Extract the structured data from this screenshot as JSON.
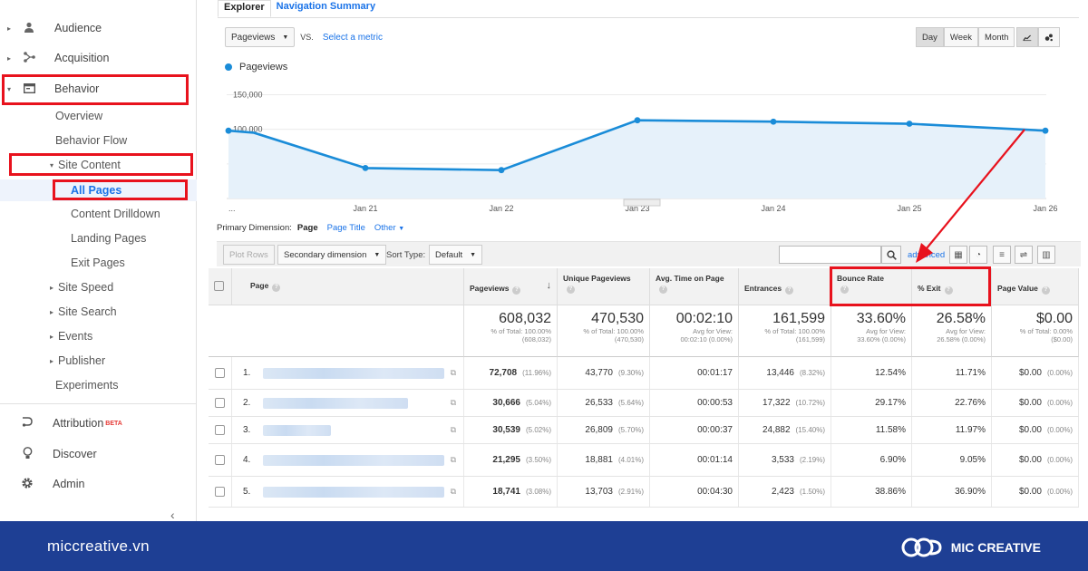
{
  "sidebar": {
    "items": [
      {
        "label": "Audience",
        "icon": "person-icon"
      },
      {
        "label": "Acquisition",
        "icon": "acquisition-icon"
      },
      {
        "label": "Behavior",
        "icon": "behavior-icon"
      }
    ],
    "behavior_sub": [
      "Overview",
      "Behavior Flow"
    ],
    "site_content": "Site Content",
    "site_content_sub": [
      "All Pages",
      "Content Drilldown",
      "Landing Pages",
      "Exit Pages"
    ],
    "behavior_more": [
      "Site Speed",
      "Site Search",
      "Events",
      "Publisher"
    ],
    "experiments": "Experiments",
    "bottom": [
      {
        "label": "Attribution",
        "icon": "attribution-icon",
        "badge": "BETA"
      },
      {
        "label": "Discover",
        "icon": "lightbulb-icon"
      },
      {
        "label": "Admin",
        "icon": "gear-icon"
      }
    ],
    "collapse": "‹"
  },
  "tabs": [
    "Explorer",
    "Navigation Summary"
  ],
  "metric": {
    "selected": "Pageviews",
    "vs": "VS.",
    "select_link": "Select a metric"
  },
  "range_buttons": [
    "Day",
    "Week",
    "Month"
  ],
  "chart_data": {
    "type": "line",
    "series": [
      {
        "name": "Pageviews",
        "values": [
          98000,
          95000,
          44000,
          41000,
          113000,
          111000,
          108000,
          98000
        ]
      }
    ],
    "x": [
      "…",
      "…",
      "Jan 21",
      "Jan 22",
      "Jan 23",
      "Jan 24",
      "Jan 25",
      "Jan 26"
    ],
    "x_labels": [
      "...",
      "Jan 21",
      "Jan 22",
      "Jan 23",
      "Jan 24",
      "Jan 25",
      "Jan 26"
    ],
    "y_ticks": [
      "150,000",
      "100,000",
      "50,000"
    ],
    "y_tick_values": [
      150000,
      100000,
      50000
    ],
    "ylim": [
      0,
      165000
    ],
    "color": "#1a8cd8"
  },
  "primary_dimension": {
    "label": "Primary Dimension:",
    "current": "Page",
    "options": [
      "Page Title",
      "Other"
    ]
  },
  "toolbar": {
    "plot_rows": "Plot Rows",
    "secondary": "Secondary dimension",
    "sort_label": "Sort Type:",
    "sort_value": "Default",
    "advanced": "advanced"
  },
  "table": {
    "headers": [
      "Page",
      "Pageviews",
      "Unique Pageviews",
      "Avg. Time on Page",
      "Entrances",
      "Bounce Rate",
      "% Exit",
      "Page Value"
    ],
    "summary": [
      {
        "big": "608,032",
        "small1": "% of Total: 100.00%",
        "small2": "(608,032)"
      },
      {
        "big": "470,530",
        "small1": "% of Total: 100.00%",
        "small2": "(470,530)"
      },
      {
        "big": "00:02:10",
        "small1": "Avg for View:",
        "small2": "00:02:10 (0.00%)"
      },
      {
        "big": "161,599",
        "small1": "% of Total: 100.00%",
        "small2": "(161,599)"
      },
      {
        "big": "33.60%",
        "small1": "Avg for View:",
        "small2": "33.60% (0.00%)"
      },
      {
        "big": "26.58%",
        "small1": "Avg for View:",
        "small2": "26.58% (0.00%)"
      },
      {
        "big": "$0.00",
        "small1": "% of Total: 0.00%",
        "small2": "($0.00)"
      }
    ],
    "rows": [
      {
        "n": "1.",
        "pv": "72,708",
        "pvp": "(11.96%)",
        "upv": "43,770",
        "upvp": "(9.30%)",
        "time": "00:01:17",
        "ent": "13,446",
        "entp": "(8.32%)",
        "br": "12.54%",
        "exit": "11.71%",
        "val": "$0.00",
        "valp": "(0.00%)"
      },
      {
        "n": "2.",
        "pv": "30,666",
        "pvp": "(5.04%)",
        "upv": "26,533",
        "upvp": "(5.64%)",
        "time": "00:00:53",
        "ent": "17,322",
        "entp": "(10.72%)",
        "br": "29.17%",
        "exit": "22.76%",
        "val": "$0.00",
        "valp": "(0.00%)"
      },
      {
        "n": "3.",
        "pv": "30,539",
        "pvp": "(5.02%)",
        "upv": "26,809",
        "upvp": "(5.70%)",
        "time": "00:00:37",
        "ent": "24,882",
        "entp": "(15.40%)",
        "br": "11.58%",
        "exit": "11.97%",
        "val": "$0.00",
        "valp": "(0.00%)"
      },
      {
        "n": "4.",
        "pv": "21,295",
        "pvp": "(3.50%)",
        "upv": "18,881",
        "upvp": "(4.01%)",
        "time": "00:01:14",
        "ent": "3,533",
        "entp": "(2.19%)",
        "br": "6.90%",
        "exit": "9.05%",
        "val": "$0.00",
        "valp": "(0.00%)"
      },
      {
        "n": "5.",
        "pv": "18,741",
        "pvp": "(3.08%)",
        "upv": "13,703",
        "upvp": "(2.91%)",
        "time": "00:04:30",
        "ent": "2,423",
        "entp": "(1.50%)",
        "br": "38.86%",
        "exit": "36.90%",
        "val": "$0.00",
        "valp": "(0.00%)"
      }
    ]
  },
  "footer": {
    "site": "miccreative.vn",
    "brand": "MIC CREATIVE"
  },
  "colors": {
    "highlight": "#e8121d",
    "footer": "#1e3f94",
    "link": "#1a73e8"
  }
}
